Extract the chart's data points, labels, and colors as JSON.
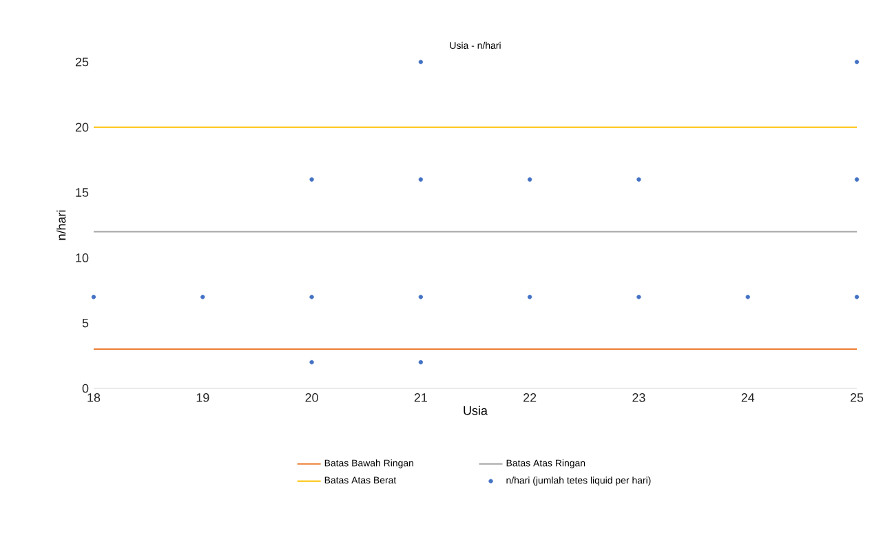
{
  "chart_data": {
    "type": "scatter",
    "title": "Usia - n/hari",
    "xlabel": "Usia",
    "ylabel": "n/hari",
    "xlim": [
      18,
      25
    ],
    "xticks": [
      18,
      19,
      20,
      21,
      22,
      23,
      24,
      25
    ],
    "ylim": [
      0,
      25
    ],
    "yticks": [
      0,
      5,
      10,
      15,
      20,
      25
    ],
    "grid": false,
    "legend": "bottom",
    "series": [
      {
        "name": "Batas Bawah Ringan",
        "type": "line",
        "color": "#ed7d31",
        "marker": "none",
        "x": [
          18,
          25
        ],
        "values": [
          3,
          3
        ]
      },
      {
        "name": "Batas Atas Ringan",
        "type": "line",
        "color": "#a5a5a5",
        "marker": "none",
        "x": [
          18,
          25
        ],
        "values": [
          12,
          12
        ]
      },
      {
        "name": "Batas Atas Berat",
        "type": "line",
        "color": "#ffc000",
        "marker": "none",
        "x": [
          18,
          25
        ],
        "values": [
          20,
          20
        ]
      },
      {
        "name": "n/hari (jumlah tetes liquid per hari)",
        "color": "#4472c4",
        "marker": "circle",
        "x": [
          18,
          19,
          20,
          20,
          20,
          21,
          21,
          21,
          21,
          22,
          22,
          23,
          23,
          24,
          25,
          25,
          25
        ],
        "values": [
          7,
          7,
          16,
          7,
          2,
          25,
          16,
          7,
          2,
          16,
          7,
          16,
          7,
          7,
          25,
          16,
          7
        ]
      }
    ]
  }
}
